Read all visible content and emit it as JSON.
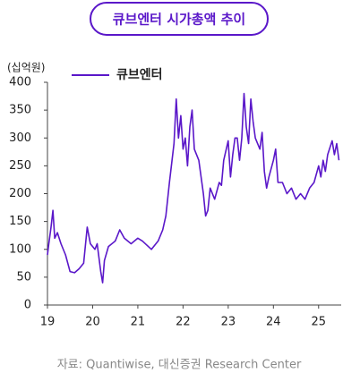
{
  "chart_data": {
    "type": "line",
    "title": "큐브엔터 시가총액 추이",
    "y_unit": "(십억원)",
    "source": "자료: Quantiwise, 대신증권 Research Center",
    "series": [
      {
        "name": "큐브엔터",
        "color": "#5a17c9",
        "x": [
          19.0,
          19.03,
          19.08,
          19.12,
          19.16,
          19.22,
          19.3,
          19.4,
          19.5,
          19.6,
          19.7,
          19.8,
          19.88,
          19.95,
          20.05,
          20.1,
          20.18,
          20.22,
          20.26,
          20.35,
          20.5,
          20.6,
          20.7,
          20.85,
          21.0,
          21.1,
          21.3,
          21.45,
          21.55,
          21.62,
          21.7,
          21.8,
          21.85,
          21.9,
          21.95,
          22.0,
          22.05,
          22.1,
          22.15,
          22.2,
          22.25,
          22.35,
          22.45,
          22.5,
          22.55,
          22.6,
          22.7,
          22.8,
          22.85,
          22.9,
          23.0,
          23.05,
          23.1,
          23.15,
          23.2,
          23.25,
          23.3,
          23.35,
          23.4,
          23.45,
          23.5,
          23.55,
          23.6,
          23.7,
          23.75,
          23.8,
          23.85,
          23.9,
          24.0,
          24.05,
          24.1,
          24.2,
          24.3,
          24.4,
          24.5,
          24.6,
          24.7,
          24.8,
          24.9,
          25.0,
          25.05,
          25.1,
          25.15,
          25.2,
          25.3,
          25.35,
          25.4,
          25.45
        ],
        "values": [
          90,
          110,
          140,
          170,
          120,
          130,
          110,
          90,
          60,
          58,
          65,
          75,
          140,
          110,
          100,
          110,
          60,
          40,
          80,
          105,
          115,
          135,
          120,
          110,
          120,
          115,
          100,
          115,
          135,
          160,
          220,
          290,
          370,
          300,
          340,
          280,
          300,
          250,
          320,
          350,
          280,
          260,
          200,
          160,
          170,
          210,
          190,
          220,
          215,
          260,
          295,
          230,
          270,
          300,
          300,
          260,
          300,
          380,
          320,
          290,
          370,
          330,
          300,
          280,
          310,
          240,
          210,
          230,
          260,
          280,
          220,
          220,
          200,
          210,
          190,
          200,
          190,
          210,
          220,
          250,
          230,
          260,
          240,
          270,
          295,
          270,
          290,
          260
        ]
      }
    ],
    "xlim": [
      19,
      25.5
    ],
    "xticks": [
      19,
      20,
      21,
      22,
      23,
      24,
      25
    ],
    "ylim": [
      0,
      400
    ],
    "yticks": [
      0,
      50,
      100,
      150,
      200,
      250,
      300,
      350,
      400
    ],
    "legend": "top-left"
  }
}
